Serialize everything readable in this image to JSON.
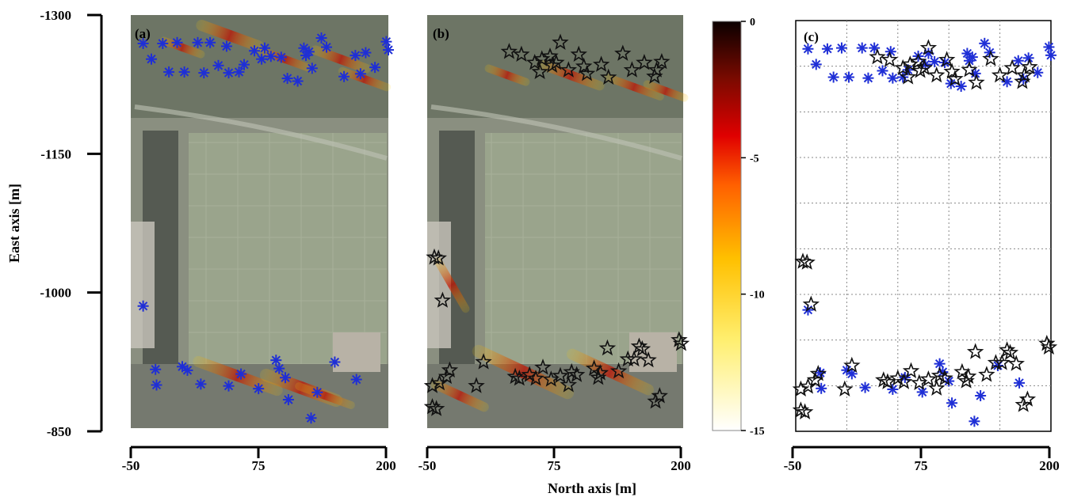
{
  "chart_data": {
    "type": "scatter",
    "xlabel": "North axis [m]",
    "ylabel": "East axis [m]",
    "xlim": [
      -50,
      200
    ],
    "ylim": [
      -1300,
      -850
    ],
    "xticks": [
      "-50",
      "75",
      "200"
    ],
    "yticks": [
      "-1300",
      "-1150",
      "-1000",
      "-850"
    ],
    "panels": [
      "(a)",
      "(b)",
      "(c)"
    ],
    "colorbar": {
      "ticks": [
        "0",
        "-5",
        "-10",
        "-15"
      ],
      "range": [
        -15,
        0
      ]
    },
    "series": [
      {
        "marker": "asterisk",
        "color": "#1f2fd6",
        "points": [
          [
            -38,
            -1269
          ],
          [
            -30,
            -1252
          ],
          [
            -19,
            -1269
          ],
          [
            -13,
            -1238
          ],
          [
            -5,
            -1270
          ],
          [
            2,
            -1238
          ],
          [
            15,
            -1270
          ],
          [
            21,
            -1237
          ],
          [
            27,
            -1270
          ],
          [
            35,
            -1245
          ],
          [
            43,
            -1266
          ],
          [
            45,
            -1237
          ],
          [
            55,
            -1238
          ],
          [
            60,
            -1246
          ],
          [
            70,
            -1261
          ],
          [
            77,
            -1252
          ],
          [
            80,
            -1264
          ],
          [
            86,
            -1255
          ],
          [
            96,
            -1254
          ],
          [
            102,
            -1231
          ],
          [
            112,
            -1228
          ],
          [
            123,
            -1260
          ],
          [
            126,
            -1242
          ],
          [
            135,
            -1275
          ],
          [
            140,
            -1265
          ],
          [
            157,
            -1233
          ],
          [
            168,
            -1256
          ],
          [
            173,
            -1236
          ],
          [
            178,
            -1259
          ],
          [
            187,
            -1243
          ],
          [
            -38,
            -983
          ],
          [
            -26,
            -914
          ],
          [
            -25,
            -897
          ],
          [
            0,
            -917
          ],
          [
            5,
            -913
          ],
          [
            18,
            -898
          ],
          [
            45,
            -896
          ],
          [
            57,
            -909
          ],
          [
            74,
            -893
          ],
          [
            91,
            -924
          ],
          [
            94,
            -915
          ],
          [
            100,
            -905
          ],
          [
            103,
            -881
          ],
          [
            125,
            -861
          ],
          [
            131,
            -889
          ],
          [
            148,
            -922
          ],
          [
            169,
            -903
          ],
          [
            198,
            -1271
          ],
          [
            200,
            -1262
          ],
          [
            118,
            -1264
          ],
          [
            120,
            -1256
          ]
        ]
      },
      {
        "marker": "star",
        "color": "#111111",
        "points": [
          [
            30,
            -1260
          ],
          [
            42,
            -1257
          ],
          [
            55,
            -1248
          ],
          [
            60,
            -1238
          ],
          [
            62,
            -1252
          ],
          [
            70,
            -1255
          ],
          [
            72,
            -1245
          ],
          [
            76,
            -1248
          ],
          [
            80,
            -1270
          ],
          [
            88,
            -1240
          ],
          [
            98,
            -1257
          ],
          [
            103,
            -1244
          ],
          [
            106,
            -1236
          ],
          [
            120,
            -1246
          ],
          [
            127,
            -1232
          ],
          [
            141,
            -1258
          ],
          [
            150,
            -1240
          ],
          [
            162,
            -1248
          ],
          [
            172,
            -1233
          ],
          [
            174,
            -1240
          ],
          [
            179,
            -1249
          ],
          [
            -43,
            -1036
          ],
          [
            -39,
            -1035
          ],
          [
            -35,
            -989
          ],
          [
            -45,
            -896
          ],
          [
            -38,
            -899
          ],
          [
            -31,
            -906
          ],
          [
            -28,
            -913
          ],
          [
            -45,
            -873
          ],
          [
            -41,
            -871
          ],
          [
            -2,
            -896
          ],
          [
            5,
            -922
          ],
          [
            36,
            -906
          ],
          [
            40,
            -904
          ],
          [
            50,
            -908
          ],
          [
            56,
            -904
          ],
          [
            63,
            -916
          ],
          [
            71,
            -903
          ],
          [
            80,
            -907
          ],
          [
            88,
            -897
          ],
          [
            91,
            -911
          ],
          [
            96,
            -908
          ],
          [
            113,
            -915
          ],
          [
            117,
            -905
          ],
          [
            119,
            -910
          ],
          [
            126,
            -937
          ],
          [
            137,
            -912
          ],
          [
            146,
            -925
          ],
          [
            152,
            -925
          ],
          [
            157,
            -939
          ],
          [
            160,
            -936
          ],
          [
            166,
            -924
          ],
          [
            173,
            -879
          ],
          [
            177,
            -885
          ],
          [
            196,
            -946
          ],
          [
            198,
            -942
          ]
        ]
      }
    ]
  }
}
